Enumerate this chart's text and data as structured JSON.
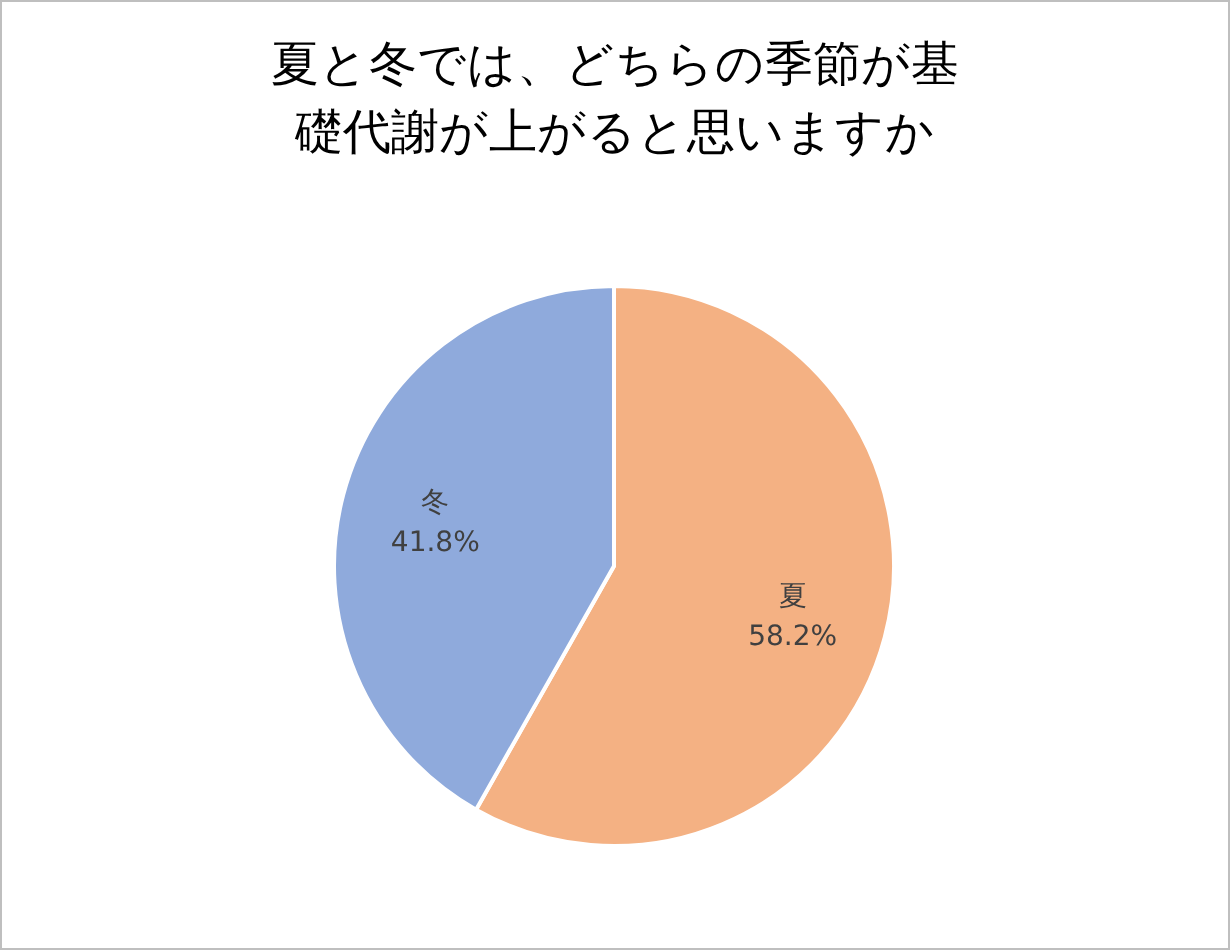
{
  "chart_data": {
    "type": "pie",
    "title": "夏と冬では、どちらの季節が基礎代謝が上がると思いますか",
    "categories": [
      "夏",
      "冬"
    ],
    "values": [
      58.2,
      41.8
    ],
    "colors": [
      "#f4b183",
      "#8faadc"
    ],
    "value_labels": [
      "58.2%",
      "41.8%"
    ]
  }
}
